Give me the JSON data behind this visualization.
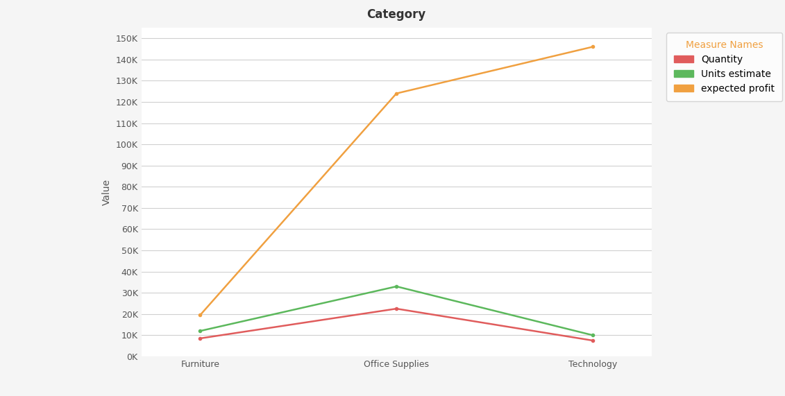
{
  "title": "Category",
  "xlabel": "",
  "ylabel": "Value",
  "categories": [
    "Furniture",
    "Office Supplies",
    "Technology"
  ],
  "series": {
    "Quantity": {
      "values": [
        8500,
        22500,
        7500
      ],
      "color": "#e05c5c",
      "linewidth": 1.8
    },
    "Units estimate": {
      "values": [
        12000,
        33000,
        10000
      ],
      "color": "#5cb85c",
      "linewidth": 1.8
    },
    "expected profit": {
      "values": [
        19500,
        124000,
        146000
      ],
      "color": "#f0a040",
      "linewidth": 1.8
    }
  },
  "ylim": [
    0,
    155000
  ],
  "yticks": [
    0,
    10000,
    20000,
    30000,
    40000,
    50000,
    60000,
    70000,
    80000,
    90000,
    100000,
    110000,
    120000,
    130000,
    140000,
    150000
  ],
  "legend_title": "Measure Names",
  "legend_title_color": "#f0a040",
  "background_color": "#f5f5f5",
  "plot_bg_color": "#ffffff",
  "grid_color": "#d0d0d0",
  "title_fontsize": 12,
  "axis_label_fontsize": 10,
  "tick_fontsize": 9,
  "legend_fontsize": 10
}
